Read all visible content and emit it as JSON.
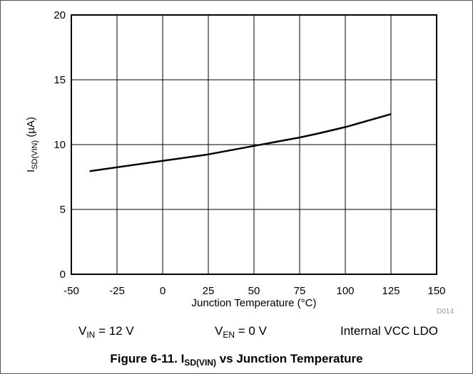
{
  "chart_data": {
    "type": "line",
    "xlabel": "Junction Temperature (°C)",
    "ylabel": {
      "main": "I",
      "sub": "SD(VIN)",
      "unit": " (µA)"
    },
    "xlim": [
      -50,
      150
    ],
    "ylim": [
      0,
      20
    ],
    "xticks": [
      "-50",
      "-25",
      "0",
      "25",
      "50",
      "75",
      "100",
      "125",
      "150"
    ],
    "yticks": [
      "0",
      "5",
      "10",
      "15",
      "20"
    ],
    "grid": true,
    "series": [
      {
        "x": [
          -40,
          -25,
          0,
          25,
          50,
          75,
          85,
          100,
          125
        ],
        "y": [
          7.95,
          8.25,
          8.75,
          9.25,
          9.9,
          10.55,
          10.85,
          11.35,
          12.35
        ]
      }
    ],
    "figure_code": "D014"
  },
  "conditions": [
    {
      "main": "V",
      "sub": "IN",
      "rest": " = 12 V"
    },
    {
      "main": "V",
      "sub": "EN",
      "rest": " = 0 V"
    },
    {
      "text": "Internal VCC LDO"
    }
  ],
  "caption": {
    "prefix": "Figure 6-11. I",
    "sub": "SD(VIN)",
    "suffix": " vs Junction Temperature"
  },
  "colors": {
    "line": "#000000",
    "grid": "#000000",
    "frame": "#555555"
  }
}
